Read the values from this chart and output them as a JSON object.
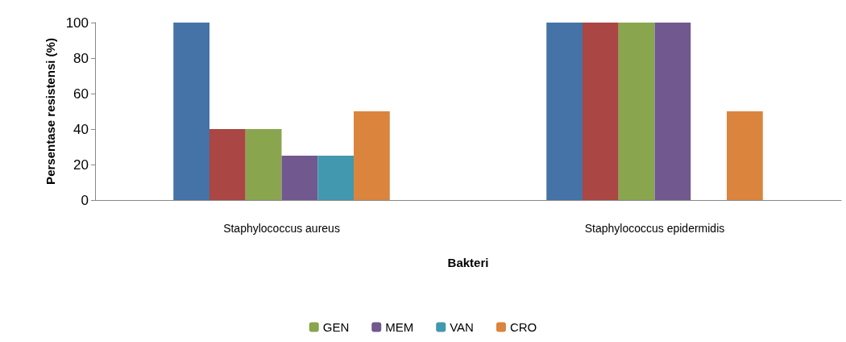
{
  "chart_data": {
    "type": "bar",
    "xlabel": "Bakteri",
    "ylabel": "Persentase resistensi (%)",
    "categories": [
      "Staphylococcus aureus",
      "Staphylococcus epidermidis"
    ],
    "series": [
      {
        "color": "#4572a7",
        "values": [
          100,
          100
        ]
      },
      {
        "color": "#aa4643",
        "values": [
          40,
          100
        ]
      },
      {
        "name": "GEN",
        "color": "#89a54e",
        "values": [
          40,
          100
        ]
      },
      {
        "name": "MEM",
        "color": "#71588f",
        "values": [
          25,
          100
        ]
      },
      {
        "name": "VAN",
        "color": "#4198af",
        "values": [
          25,
          0
        ]
      },
      {
        "name": "CRO",
        "color": "#db843d",
        "values": [
          50,
          50
        ]
      }
    ],
    "ylim": [
      0,
      100
    ],
    "yticks": [
      0,
      20,
      40,
      60,
      80,
      100
    ],
    "grid": false,
    "legend": "bottom"
  }
}
